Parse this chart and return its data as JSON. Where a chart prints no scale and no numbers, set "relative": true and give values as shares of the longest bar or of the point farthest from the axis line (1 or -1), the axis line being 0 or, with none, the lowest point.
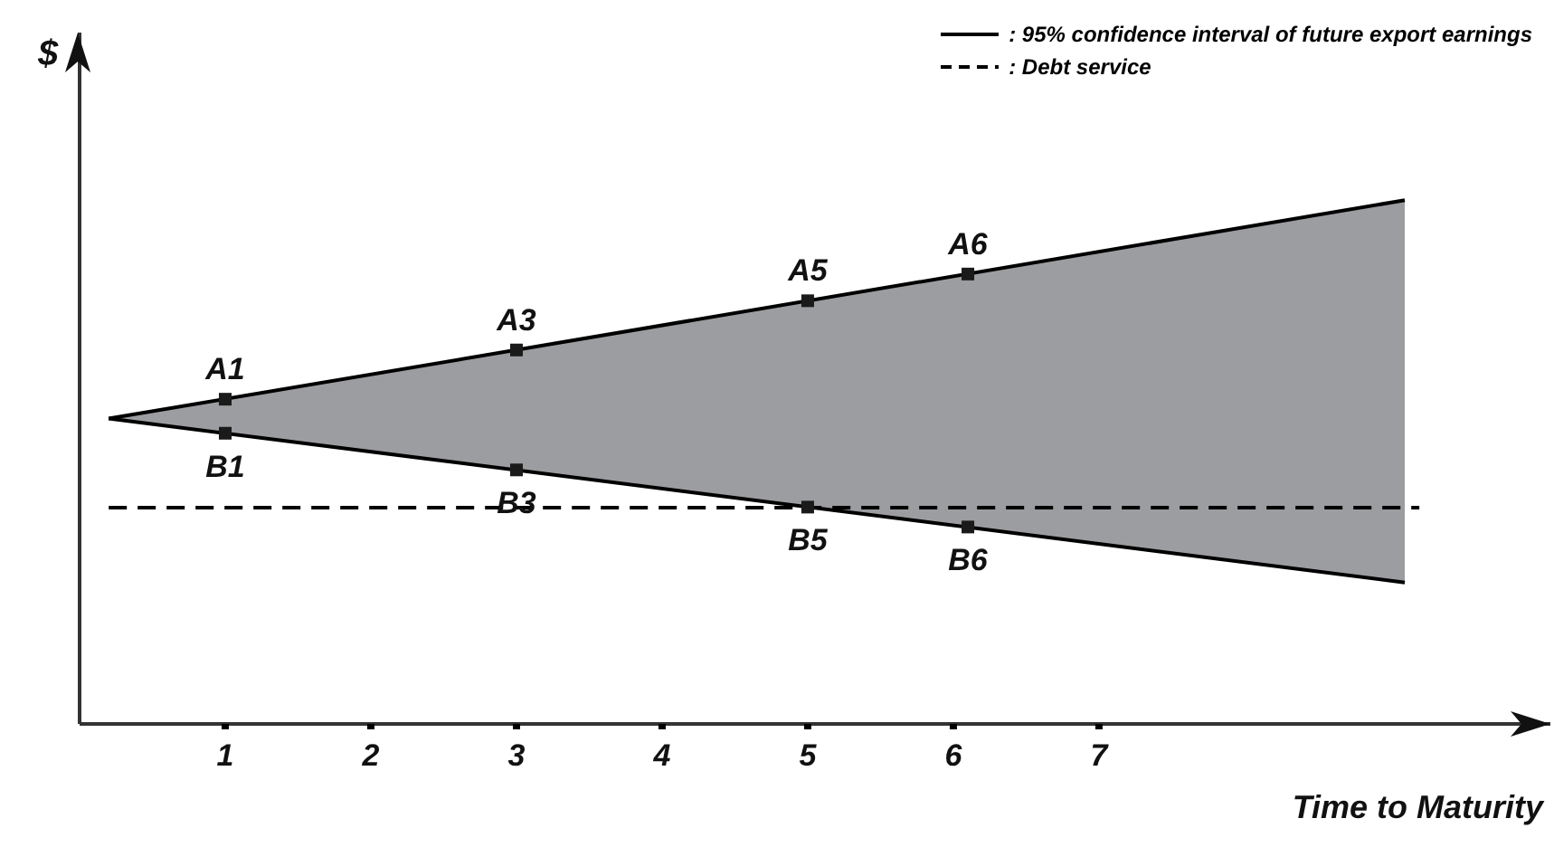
{
  "chart_data": {
    "type": "line",
    "relative": true,
    "xlabel": "Time to Maturity",
    "ylabel": "$",
    "xlim": [
      0,
      10.1
    ],
    "xticks": [
      1,
      2,
      3,
      4,
      5,
      6,
      7
    ],
    "tick_labels": "x",
    "grid": false,
    "legend": "top right",
    "marker": "none",
    "series": [
      {
        "name": ": 95% confidence interval of future export earnings",
        "color": "#000000",
        "x": [
          0.2,
          9.1
        ],
        "values": [
          0.583,
          1.0
        ],
        "lower": [
          0.583,
          0.27
        ],
        "upper": [
          0.583,
          1.0
        ]
      },
      {
        "color": "#000000",
        "x": [
          0.2,
          9.1
        ],
        "values": [
          0.583,
          0.27
        ]
      },
      {
        "name": ": Debt service",
        "color": "#000000",
        "line_style": "dashed",
        "x": [
          0.2,
          9.2
        ],
        "values": [
          0.413,
          0.413
        ]
      },
      {
        "type": "scatter",
        "color": "#1a1a1a",
        "marker": "square",
        "x": [
          1,
          3,
          5,
          6.1,
          1,
          3,
          5,
          6.1
        ],
        "values": [
          0.62,
          0.714,
          0.808,
          0.859,
          0.555,
          0.485,
          0.414,
          0.376
        ]
      }
    ],
    "annotations": [
      {
        "text": "A1",
        "x": 1,
        "y": 0.62
      },
      {
        "text": "A3",
        "x": 3,
        "y": 0.714
      },
      {
        "text": "A5",
        "x": 5,
        "y": 0.808
      },
      {
        "text": "A6",
        "x": 6.1,
        "y": 0.859
      },
      {
        "text": "B1",
        "x": 1,
        "y": 0.555
      },
      {
        "text": "B3",
        "x": 3,
        "y": 0.485
      },
      {
        "text": "B5",
        "x": 5,
        "y": 0.414
      },
      {
        "text": "B6",
        "x": 6.1,
        "y": 0.376
      }
    ]
  }
}
